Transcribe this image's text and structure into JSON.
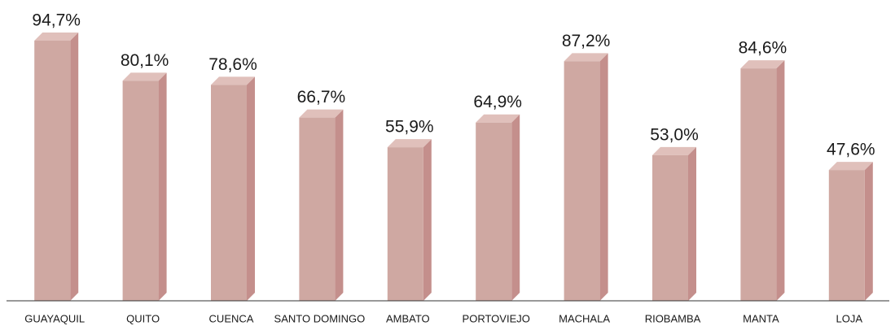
{
  "chart_data": {
    "type": "bar",
    "categories": [
      "GUAYAQUIL",
      "QUITO",
      "CUENCA",
      "SANTO DOMINGO",
      "AMBATO",
      "PORTOVIEJO",
      "MACHALA",
      "RIOBAMBA",
      "MANTA",
      "LOJA"
    ],
    "values": [
      94.7,
      80.1,
      78.6,
      66.7,
      55.9,
      64.9,
      87.2,
      53.0,
      84.6,
      47.6
    ],
    "value_labels": [
      "94,7%",
      "80,1%",
      "78,6%",
      "66,7%",
      "55,9%",
      "64,9%",
      "87,2%",
      "53,0%",
      "84,6%",
      "47,6%"
    ],
    "color": "#cfa8a2"
  }
}
